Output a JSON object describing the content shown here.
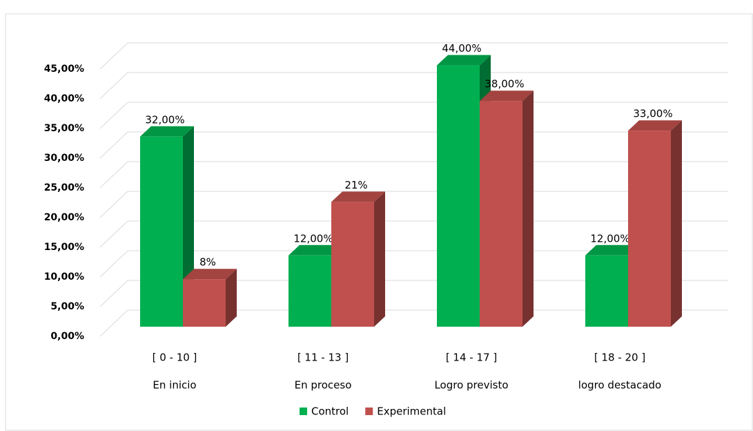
{
  "chart_data": {
    "type": "bar3d",
    "categories": [
      [
        "[ 0 - 10 ]",
        "En inicio"
      ],
      [
        "[ 11 - 13 ]",
        "En proceso"
      ],
      [
        "[ 14  - 17 ]",
        "Logro previsto"
      ],
      [
        "[ 18 - 20 ]",
        "logro destacado"
      ]
    ],
    "series": [
      {
        "name": "Control",
        "color": "#00b050",
        "values": [
          32,
          12,
          44,
          12
        ],
        "value_labels": [
          "32,00%",
          "12,00%",
          "44,00%",
          "12,00%"
        ]
      },
      {
        "name": "Experimental",
        "color": "#c0504d",
        "values": [
          8,
          21,
          38,
          33
        ],
        "value_labels": [
          "8%",
          "21%",
          "38,00%",
          "33,00%"
        ]
      }
    ],
    "ylim": [
      0,
      45
    ],
    "yticks": [
      {
        "value": 0,
        "label": "0,00%"
      },
      {
        "value": 5,
        "label": "5,00%"
      },
      {
        "value": 10,
        "label": "10,00%"
      },
      {
        "value": 15,
        "label": "15,00%"
      },
      {
        "value": 20,
        "label": "20,00%"
      },
      {
        "value": 25,
        "label": "25,00%"
      },
      {
        "value": 30,
        "label": "30,00%"
      },
      {
        "value": 35,
        "label": "35,00%"
      },
      {
        "value": 40,
        "label": "40,00%"
      },
      {
        "value": 45,
        "label": "45,00%"
      }
    ],
    "grid": true,
    "legend": "bottom"
  }
}
